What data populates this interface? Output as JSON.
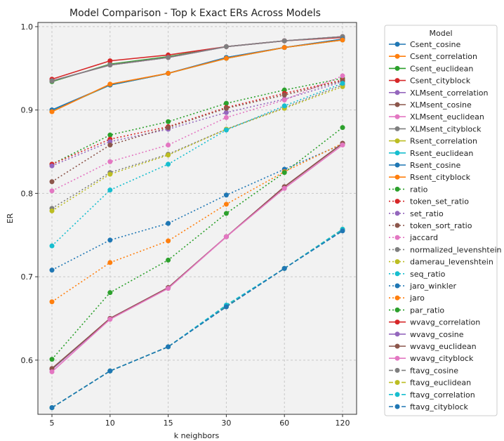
{
  "chart_data": {
    "type": "line",
    "title": "Model Comparison - Top k Exact ERs Across Models",
    "xlabel": "k neighbors",
    "ylabel": "ER",
    "categories": [
      "5",
      "10",
      "15",
      "30",
      "60",
      "120"
    ],
    "yticks": [
      "0.6",
      "0.7",
      "0.8",
      "0.9",
      "1.0"
    ],
    "ylim": [
      0.535,
      1.005
    ],
    "grid": true,
    "legend_title": "Model",
    "legend_position": "outside-right",
    "series": [
      {
        "name": "Csent_cosine",
        "color": "#1f77b4",
        "style": "solid",
        "values": [
          0.9,
          0.93,
          0.944,
          0.963,
          0.975,
          0.985
        ]
      },
      {
        "name": "Csent_correlation",
        "color": "#ff7f0e",
        "style": "solid",
        "values": [
          0.898,
          0.931,
          0.944,
          0.962,
          0.975,
          0.984
        ]
      },
      {
        "name": "Csent_euclidean",
        "color": "#2ca02c",
        "style": "solid",
        "values": [
          0.934,
          0.955,
          0.964,
          0.976,
          0.983,
          0.988
        ]
      },
      {
        "name": "Csent_cityblock",
        "color": "#d62728",
        "style": "solid",
        "values": [
          0.937,
          0.959,
          0.966,
          0.976,
          0.983,
          0.987
        ]
      },
      {
        "name": "XLMsent_correlation",
        "color": "#9467bd",
        "style": "solid",
        "values": [
          0.935,
          0.954,
          0.963,
          0.976,
          0.983,
          0.988
        ]
      },
      {
        "name": "XLMsent_cosine",
        "color": "#8c564b",
        "style": "solid",
        "values": [
          0.935,
          0.954,
          0.963,
          0.976,
          0.983,
          0.988
        ]
      },
      {
        "name": "XLMsent_euclidean",
        "color": "#e377c2",
        "style": "solid",
        "values": [
          0.935,
          0.954,
          0.963,
          0.976,
          0.983,
          0.988
        ]
      },
      {
        "name": "XLMsent_cityblock",
        "color": "#7f7f7f",
        "style": "solid",
        "values": [
          0.935,
          0.954,
          0.963,
          0.976,
          0.983,
          0.988
        ]
      },
      {
        "name": "Rsent_correlation",
        "color": "#bcbd22",
        "style": "solid",
        "values": [
          0.899,
          0.93,
          0.944,
          0.962,
          0.975,
          0.984
        ]
      },
      {
        "name": "Rsent_euclidean",
        "color": "#17becf",
        "style": "solid",
        "values": [
          0.899,
          0.93,
          0.944,
          0.962,
          0.975,
          0.984
        ]
      },
      {
        "name": "Rsent_cosine",
        "color": "#1f77b4",
        "style": "solid",
        "values": [
          0.9,
          0.93,
          0.944,
          0.963,
          0.975,
          0.985
        ]
      },
      {
        "name": "Rsent_cityblock",
        "color": "#ff7f0e",
        "style": "solid",
        "values": [
          0.898,
          0.931,
          0.944,
          0.962,
          0.975,
          0.984
        ]
      },
      {
        "name": "ratio",
        "color": "#2ca02c",
        "style": "dotted",
        "values": [
          0.835,
          0.87,
          0.886,
          0.908,
          0.924,
          0.938
        ]
      },
      {
        "name": "token_set_ratio",
        "color": "#d62728",
        "style": "dotted",
        "values": [
          0.835,
          0.865,
          0.88,
          0.903,
          0.92,
          0.936
        ]
      },
      {
        "name": "set_ratio",
        "color": "#9467bd",
        "style": "dotted",
        "values": [
          0.833,
          0.862,
          0.877,
          0.897,
          0.913,
          0.934
        ]
      },
      {
        "name": "token_sort_ratio",
        "color": "#8c564b",
        "style": "dotted",
        "values": [
          0.814,
          0.858,
          0.879,
          0.902,
          0.918,
          0.935
        ]
      },
      {
        "name": "jaccard",
        "color": "#e377c2",
        "style": "dotted",
        "values": [
          0.803,
          0.838,
          0.858,
          0.891,
          0.912,
          0.941
        ]
      },
      {
        "name": "normalized_levenshtein",
        "color": "#7f7f7f",
        "style": "dotted",
        "values": [
          0.782,
          0.825,
          0.847,
          0.877,
          0.903,
          0.93
        ]
      },
      {
        "name": "damerau_levenshtein",
        "color": "#bcbd22",
        "style": "dotted",
        "values": [
          0.779,
          0.823,
          0.846,
          0.877,
          0.902,
          0.928
        ]
      },
      {
        "name": "seq_ratio",
        "color": "#17becf",
        "style": "dotted",
        "values": [
          0.737,
          0.804,
          0.835,
          0.876,
          0.905,
          0.932
        ]
      },
      {
        "name": "jaro_winkler",
        "color": "#1f77b4",
        "style": "dotted",
        "values": [
          0.708,
          0.744,
          0.764,
          0.798,
          0.829,
          0.859
        ]
      },
      {
        "name": "jaro",
        "color": "#ff7f0e",
        "style": "dotted",
        "values": [
          0.67,
          0.717,
          0.743,
          0.787,
          0.826,
          0.86
        ]
      },
      {
        "name": "par_ratio",
        "color": "#2ca02c",
        "style": "dotted",
        "values": [
          0.601,
          0.681,
          0.72,
          0.776,
          0.825,
          0.879
        ]
      },
      {
        "name": "wvavg_correlation",
        "color": "#d62728",
        "style": "solid",
        "values": [
          0.589,
          0.65,
          0.687,
          0.748,
          0.808,
          0.86
        ]
      },
      {
        "name": "wvavg_cosine",
        "color": "#9467bd",
        "style": "solid",
        "values": [
          0.589,
          0.65,
          0.687,
          0.748,
          0.808,
          0.86
        ]
      },
      {
        "name": "wvavg_euclidean",
        "color": "#8c564b",
        "style": "solid",
        "values": [
          0.59,
          0.65,
          0.687,
          0.748,
          0.808,
          0.86
        ]
      },
      {
        "name": "wvavg_cityblock",
        "color": "#e377c2",
        "style": "solid",
        "values": [
          0.586,
          0.649,
          0.686,
          0.748,
          0.806,
          0.858
        ]
      },
      {
        "name": "ftavg_cosine",
        "color": "#7f7f7f",
        "style": "dashed",
        "values": [
          0.543,
          0.587,
          0.616,
          0.664,
          0.71,
          0.756
        ]
      },
      {
        "name": "ftavg_euclidean",
        "color": "#bcbd22",
        "style": "dashed",
        "values": [
          0.543,
          0.587,
          0.616,
          0.665,
          0.71,
          0.757
        ]
      },
      {
        "name": "ftavg_correlation",
        "color": "#17becf",
        "style": "dashed",
        "values": [
          0.543,
          0.587,
          0.616,
          0.666,
          0.71,
          0.757
        ]
      },
      {
        "name": "ftavg_cityblock",
        "color": "#1f77b4",
        "style": "dashed",
        "values": [
          0.543,
          0.587,
          0.616,
          0.664,
          0.71,
          0.755
        ]
      }
    ]
  }
}
